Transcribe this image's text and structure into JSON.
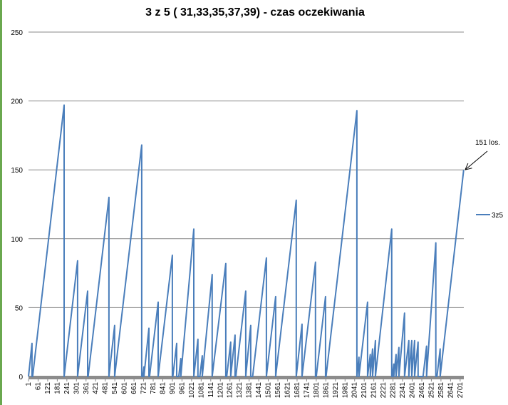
{
  "chart_data": {
    "type": "line",
    "title": "3 z 5 ( 31,33,35,37,39) - czas oczekiwania",
    "annotation": "151 los.",
    "x": [
      1,
      23,
      23,
      27,
      224,
      224,
      308,
      308,
      371,
      371,
      374,
      504,
      504,
      540,
      540,
      709,
      709,
      716,
      723,
      723,
      754,
      754,
      758,
      812,
      812,
      901,
      901,
      904,
      928,
      928,
      941,
      954,
      954,
      1035,
      1035,
      1061,
      1061,
      1073,
      1088,
      1088,
      1150,
      1150,
      1235,
      1235,
      1241,
      1266,
      1266,
      1293,
      1293,
      1298,
      1360,
      1360,
      1391,
      1391,
      1403,
      1489,
      1489,
      1547,
      1547,
      1676,
      1676,
      1712,
      1712,
      1796,
      1796,
      1801,
      1859,
      1859,
      1862,
      2055,
      2055,
      2068,
      2068,
      2122,
      2122,
      2139,
      2139,
      2153,
      2153,
      2171,
      2171,
      2273,
      2273,
      2277,
      2286,
      2286,
      2300,
      2300,
      2318,
      2318,
      2353,
      2353,
      2380,
      2380,
      2398,
      2398,
      2416,
      2416,
      2438,
      2438,
      2469,
      2491,
      2491,
      2549,
      2549,
      2556,
      2576,
      2576,
      2723
    ],
    "series": [
      {
        "name": "3z5",
        "color": "#4a7ebb",
        "values": [
          0,
          24,
          0,
          0,
          197,
          0,
          84,
          0,
          62,
          0,
          0,
          130,
          0,
          37,
          0,
          168,
          0,
          0,
          7,
          0,
          35,
          0,
          0,
          54,
          0,
          88,
          0,
          0,
          24,
          0,
          0,
          13,
          0,
          107,
          0,
          27,
          0,
          0,
          15,
          0,
          74,
          0,
          82,
          0,
          0,
          25,
          0,
          30,
          0,
          0,
          62,
          0,
          37,
          0,
          0,
          86,
          0,
          58,
          0,
          128,
          0,
          38,
          0,
          83,
          0,
          0,
          58,
          0,
          0,
          193,
          0,
          14,
          0,
          54,
          0,
          16,
          0,
          20,
          0,
          26,
          0,
          107,
          0,
          0,
          9,
          0,
          16,
          0,
          21,
          0,
          46,
          0,
          26,
          0,
          26,
          0,
          26,
          0,
          25,
          0,
          0,
          22,
          0,
          97,
          0,
          0,
          20,
          0,
          150
        ]
      }
    ],
    "xlim": [
      1,
      2724
    ],
    "xticks": [
      1,
      61,
      121,
      181,
      241,
      301,
      361,
      421,
      481,
      541,
      601,
      661,
      721,
      781,
      841,
      901,
      961,
      1021,
      1081,
      1141,
      1201,
      1261,
      1321,
      1381,
      1441,
      1501,
      1561,
      1621,
      1681,
      1741,
      1801,
      1861,
      1921,
      1981,
      2041,
      2101,
      2161,
      2221,
      2281,
      2341,
      2401,
      2461,
      2521,
      2581,
      2641,
      2701
    ],
    "ylim": [
      0,
      250
    ],
    "yticks": [
      0,
      50,
      100,
      150,
      200,
      250
    ],
    "grid": true,
    "legend": "right"
  }
}
